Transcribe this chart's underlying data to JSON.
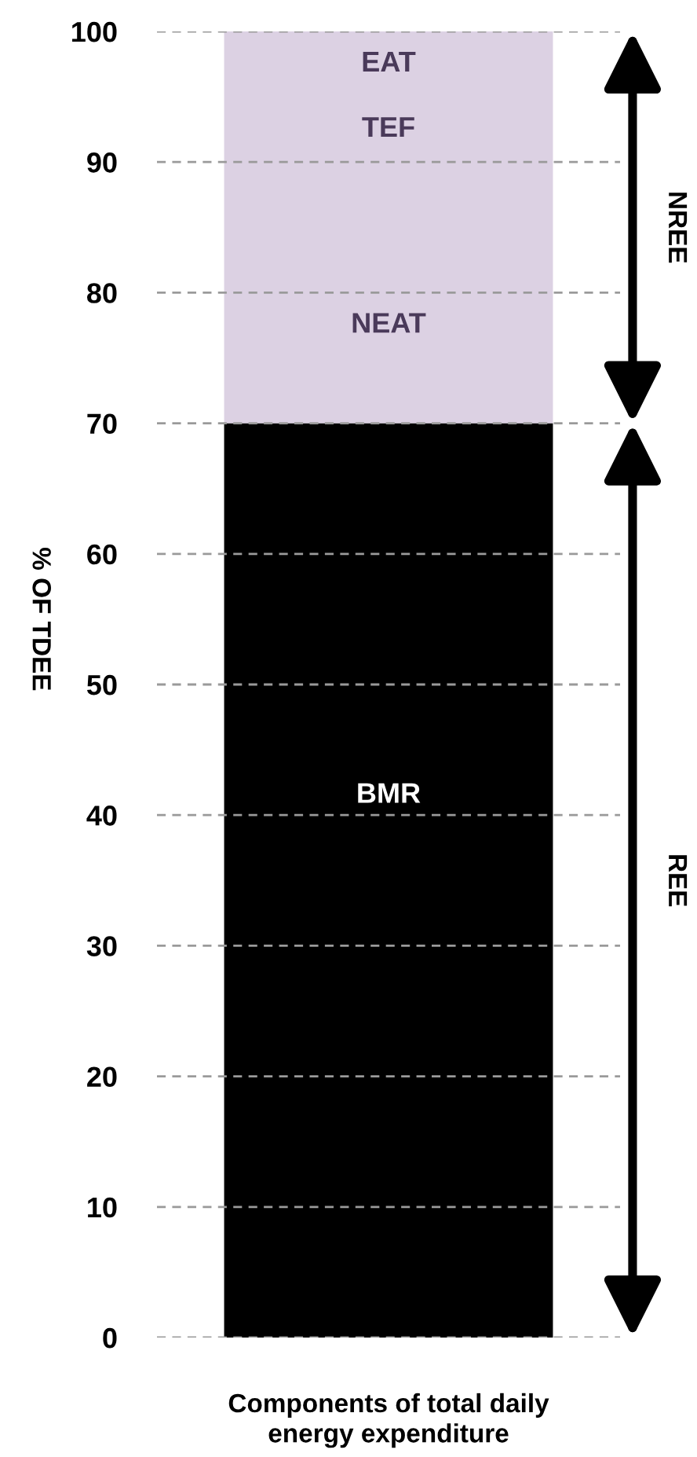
{
  "chart_data": {
    "type": "bar",
    "stacked": true,
    "categories": [
      null
    ],
    "xlabel": "Components of total daily\nenergy expenditure",
    "ylabel": "% OF TDEE",
    "series": [
      {
        "color": "#000000",
        "values": [
          70
        ]
      },
      {
        "color": "#dcd1e3",
        "values": [
          30
        ]
      }
    ],
    "annotations": [
      "EAT",
      "TEF",
      "NEAT",
      "BMR",
      "REE",
      "NREE"
    ],
    "ylim": [
      0,
      100
    ],
    "yticks": [
      0,
      10,
      20,
      30,
      40,
      50,
      60,
      70,
      80,
      90,
      100
    ],
    "grid": "y"
  }
}
